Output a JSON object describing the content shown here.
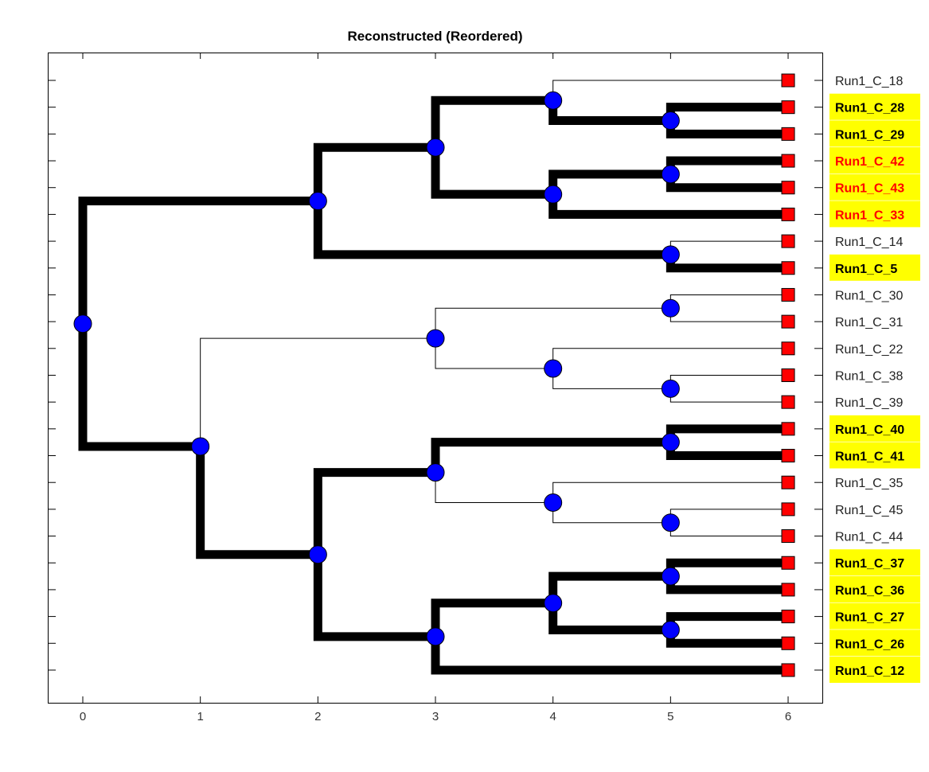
{
  "chart_data": {
    "type": "dendrogram",
    "title": "Reconstructed (Reordered)",
    "x_ticks": [
      0,
      1,
      2,
      3,
      4,
      5,
      6
    ],
    "xlim": [
      -0.3,
      6.3
    ],
    "leaves": [
      {
        "label": "Run1_C_18",
        "style": "plain"
      },
      {
        "label": "Run1_C_28",
        "style": "highlight"
      },
      {
        "label": "Run1_C_29",
        "style": "highlight"
      },
      {
        "label": "Run1_C_42",
        "style": "highlight-red"
      },
      {
        "label": "Run1_C_43",
        "style": "highlight-red"
      },
      {
        "label": "Run1_C_33",
        "style": "highlight-red"
      },
      {
        "label": "Run1_C_14",
        "style": "plain"
      },
      {
        "label": "Run1_C_5",
        "style": "highlight"
      },
      {
        "label": "Run1_C_30",
        "style": "plain"
      },
      {
        "label": "Run1_C_31",
        "style": "plain"
      },
      {
        "label": "Run1_C_22",
        "style": "plain"
      },
      {
        "label": "Run1_C_38",
        "style": "plain"
      },
      {
        "label": "Run1_C_39",
        "style": "plain"
      },
      {
        "label": "Run1_C_40",
        "style": "highlight"
      },
      {
        "label": "Run1_C_41",
        "style": "highlight"
      },
      {
        "label": "Run1_C_35",
        "style": "plain"
      },
      {
        "label": "Run1_C_45",
        "style": "plain"
      },
      {
        "label": "Run1_C_44",
        "style": "plain"
      },
      {
        "label": "Run1_C_37",
        "style": "highlight"
      },
      {
        "label": "Run1_C_36",
        "style": "highlight"
      },
      {
        "label": "Run1_C_27",
        "style": "highlight"
      },
      {
        "label": "Run1_C_26",
        "style": "highlight"
      },
      {
        "label": "Run1_C_12",
        "style": "highlight"
      }
    ],
    "nodes": [
      {
        "id": "A",
        "x": 0,
        "children": [
          "B",
          "L"
        ]
      },
      {
        "id": "B",
        "x": 2,
        "children": [
          "C",
          "I"
        ]
      },
      {
        "id": "C",
        "x": 3,
        "children": [
          "D",
          "F"
        ]
      },
      {
        "id": "D",
        "x": 4,
        "children": [
          "leaf:0",
          "E"
        ]
      },
      {
        "id": "E",
        "x": 5,
        "children": [
          "leaf:1",
          "leaf:2"
        ]
      },
      {
        "id": "F",
        "x": 4,
        "children": [
          "G",
          "leaf:5"
        ]
      },
      {
        "id": "G",
        "x": 5,
        "children": [
          "leaf:3",
          "leaf:4"
        ]
      },
      {
        "id": "I",
        "x": 5,
        "children": [
          "leaf:6",
          "leaf:7"
        ]
      },
      {
        "id": "L",
        "x": 1,
        "children": [
          "M",
          "R"
        ]
      },
      {
        "id": "M",
        "x": 3,
        "children": [
          "N",
          "O"
        ]
      },
      {
        "id": "N",
        "x": 5,
        "children": [
          "leaf:8",
          "leaf:9"
        ]
      },
      {
        "id": "O",
        "x": 4,
        "children": [
          "leaf:10",
          "P"
        ]
      },
      {
        "id": "P",
        "x": 5,
        "children": [
          "leaf:11",
          "leaf:12"
        ]
      },
      {
        "id": "R",
        "x": 2,
        "children": [
          "S",
          "W"
        ]
      },
      {
        "id": "S",
        "x": 3,
        "children": [
          "T",
          "U"
        ]
      },
      {
        "id": "T",
        "x": 5,
        "children": [
          "leaf:13",
          "leaf:14"
        ]
      },
      {
        "id": "U",
        "x": 4,
        "children": [
          "leaf:15",
          "V"
        ]
      },
      {
        "id": "V",
        "x": 5,
        "children": [
          "leaf:16",
          "leaf:17"
        ]
      },
      {
        "id": "W",
        "x": 3,
        "children": [
          "X",
          "leaf:22"
        ]
      },
      {
        "id": "X",
        "x": 4,
        "children": [
          "Y",
          "Z"
        ]
      },
      {
        "id": "Y",
        "x": 5,
        "children": [
          "leaf:18",
          "leaf:19"
        ]
      },
      {
        "id": "Z",
        "x": 5,
        "children": [
          "leaf:20",
          "leaf:21"
        ]
      }
    ],
    "thin_edges": [
      "D>leaf:0",
      "I>leaf:6",
      "L>M",
      "M>N",
      "N>leaf:8",
      "N>leaf:9",
      "M>O",
      "O>leaf:10",
      "O>P",
      "P>leaf:11",
      "P>leaf:12",
      "S>U",
      "U>leaf:15",
      "U>V",
      "V>leaf:16",
      "V>leaf:17"
    ],
    "colors": {
      "internal_node": "#0000ff",
      "leaf_marker": "#ff0000",
      "highlight_bg": "#ffff00",
      "red_label": "#ff0000",
      "edge": "#000000"
    }
  }
}
